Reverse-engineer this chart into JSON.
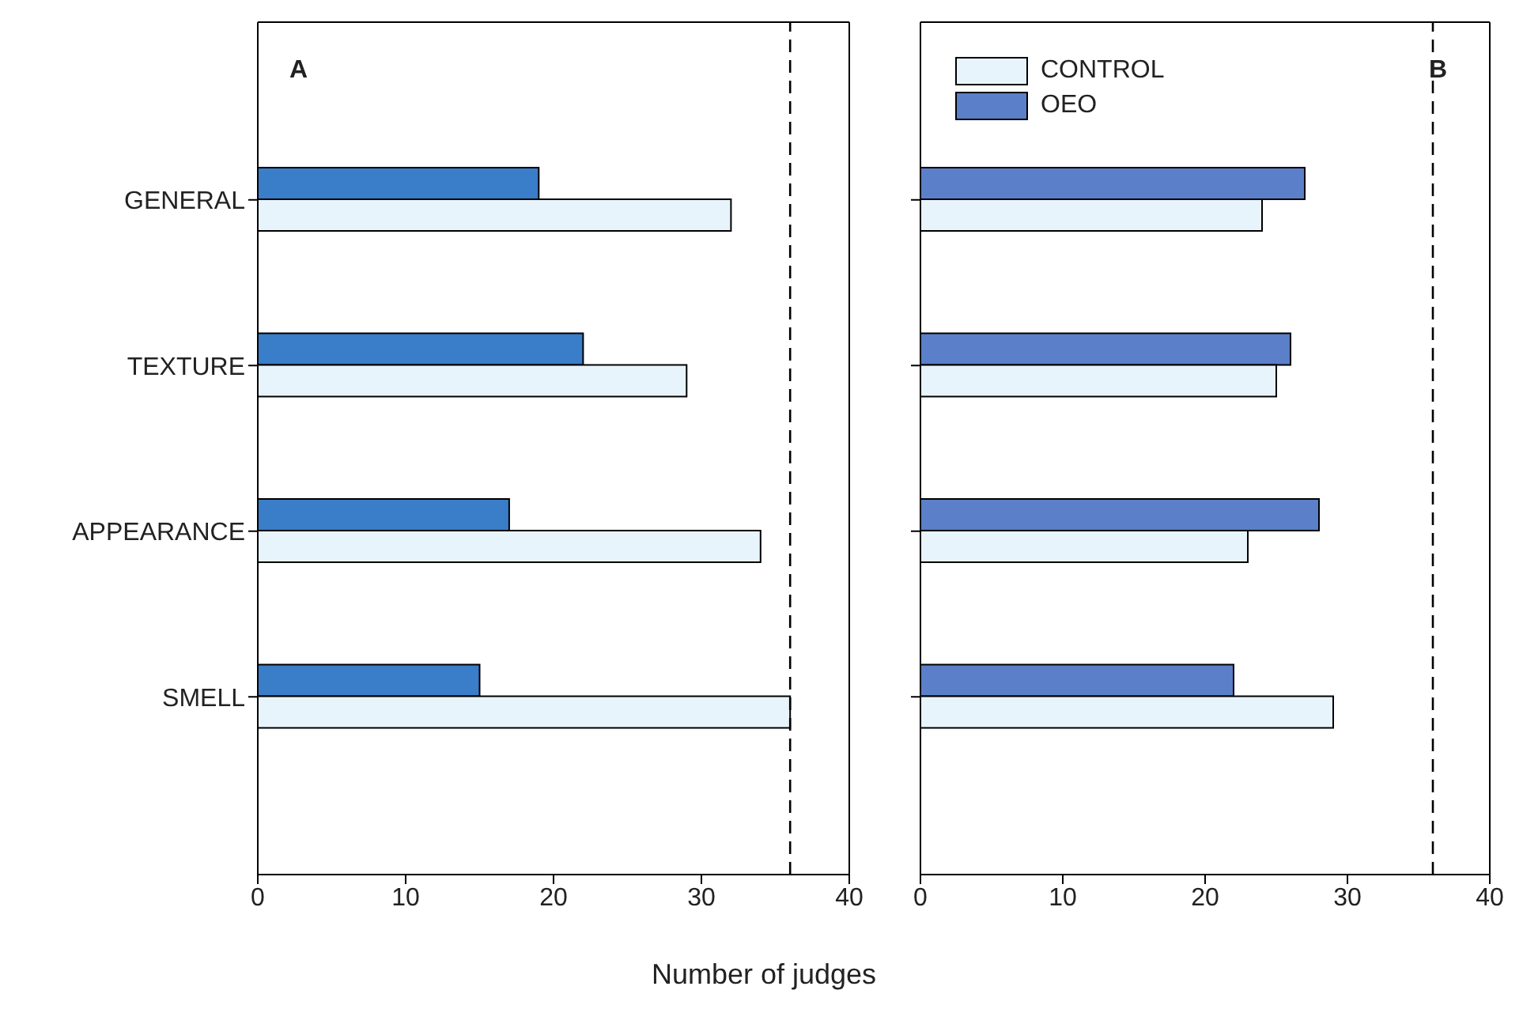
{
  "chart_data": [
    {
      "type": "bar",
      "orientation": "horizontal",
      "categories": [
        "GENERAL",
        "TEXTURE",
        "APPEARANCE",
        "SMELL"
      ],
      "series": [
        {
          "color": "#e8f4fb",
          "values": [
            32,
            29,
            34,
            36
          ]
        },
        {
          "color": "#3a7dc8",
          "values": [
            19,
            22,
            17,
            15
          ]
        }
      ],
      "xlim": [
        0,
        40
      ],
      "xticks": [
        0,
        10,
        20,
        30,
        40
      ],
      "xlabel": "Number of judges",
      "annotations": [
        "A"
      ],
      "grid": false,
      "legend": false,
      "ref_lines": [
        {
          "axis": "x",
          "value": 36,
          "line_style": "dashed",
          "color": "#000000"
        }
      ]
    },
    {
      "type": "bar",
      "orientation": "horizontal",
      "categories": [
        null,
        null,
        null,
        null
      ],
      "series": [
        {
          "name": "CONTROL",
          "color": "#e8f4fb",
          "values": [
            24,
            25,
            23,
            29
          ]
        },
        {
          "name": "OEO",
          "color": "#5b7fc8",
          "values": [
            27,
            26,
            28,
            22
          ]
        }
      ],
      "xlim": [
        0,
        40
      ],
      "xticks": [
        0,
        10,
        20,
        30,
        40
      ],
      "annotations": [
        "B"
      ],
      "grid": false,
      "legend": "top left",
      "tick_labels": "x",
      "ref_lines": [
        {
          "axis": "x",
          "value": 36,
          "line_style": "dashed",
          "color": "#000000"
        }
      ]
    }
  ]
}
